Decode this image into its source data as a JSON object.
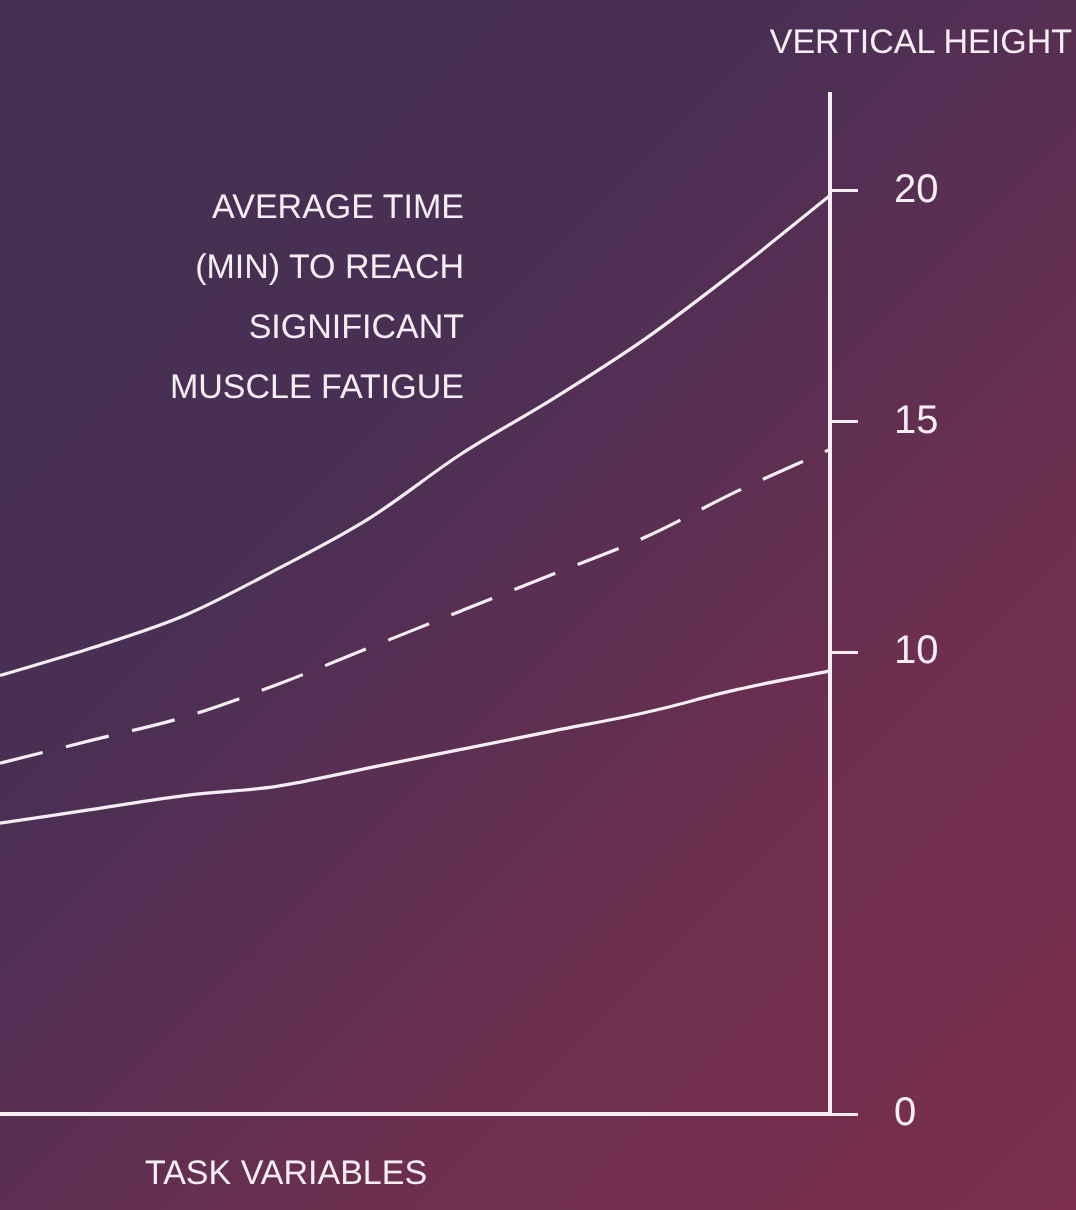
{
  "chart_data": {
    "type": "line",
    "title": "VERTICAL HEIGHT",
    "ylabel": "AVERAGE TIME (MIN) TO REACH SIGNIFICANT MUSCLE FATIGUE",
    "xlabel": "TASK VARIABLES",
    "categories": [
      null,
      null,
      null,
      null,
      null,
      null,
      null,
      null,
      null,
      null
    ],
    "series": [
      {
        "color": "#f4eef2",
        "line_style": "solid",
        "values": [
          9.5,
          10.1,
          10.8,
          11.8,
          12.9,
          14.3,
          15.5,
          16.8,
          18.3,
          19.9
        ]
      },
      {
        "color": "#f4eef2",
        "line_style": "dashed",
        "values": [
          7.6,
          8.1,
          8.6,
          9.3,
          10.1,
          10.9,
          11.7,
          12.5,
          13.5,
          14.4
        ]
      },
      {
        "color": "#f4eef2",
        "line_style": "solid",
        "values": [
          6.3,
          6.6,
          6.9,
          7.1,
          7.5,
          7.9,
          8.3,
          8.7,
          9.2,
          9.6
        ]
      }
    ],
    "ylim": [
      0,
      22.1
    ],
    "yticks": [
      0,
      10,
      15,
      20
    ],
    "tick_labels": "y",
    "grid": false,
    "legend": false,
    "marker": "none"
  }
}
